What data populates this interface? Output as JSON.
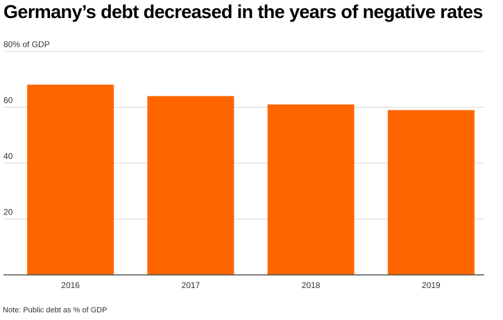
{
  "title": "Germany’s debt decreased in the years of negative rates",
  "note": "Note: Public debt as % of GDP",
  "chart_data": {
    "type": "bar",
    "categories": [
      "2016",
      "2017",
      "2018",
      "2019"
    ],
    "values": [
      68.1,
      64.0,
      61.0,
      59.0
    ],
    "ylim": [
      0,
      80
    ],
    "yticks": [
      {
        "value": 80,
        "label": "80% of GDP"
      },
      {
        "value": 60,
        "label": "60"
      },
      {
        "value": 40,
        "label": "40"
      },
      {
        "value": 20,
        "label": "20"
      }
    ],
    "grid": true,
    "bar_color": "#ff6600",
    "grid_color": "#d9d9d9",
    "axis_color": "#555555"
  }
}
